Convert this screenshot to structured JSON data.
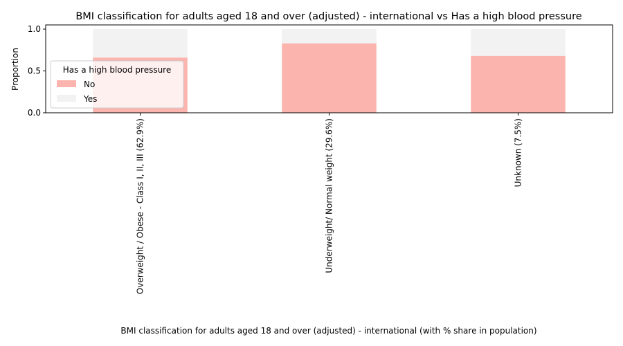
{
  "chart_data": {
    "type": "bar",
    "stacked": true,
    "title": "BMI classification for adults aged 18 and over (adjusted) - international vs Has a high blood pressure",
    "xlabel": "BMI classification for adults aged 18 and over (adjusted) - international (with % share in population)",
    "ylabel": "Proportion",
    "ylim": [
      0,
      1.05
    ],
    "yticks": [
      "0.0",
      "0.5",
      "1.0"
    ],
    "categories": [
      "Overweight / Obese - Class I, II, III (62.9%)",
      "Underweight/ Normal weight (29.6%)",
      "Unknown (7.5%)"
    ],
    "series": [
      {
        "name": "No",
        "values": [
          0.66,
          0.83,
          0.68
        ],
        "color": "#fbb4ae"
      },
      {
        "name": "Yes",
        "values": [
          0.34,
          0.17,
          0.32
        ],
        "color": "#f2f2f2"
      }
    ],
    "legend": {
      "title": "Has a high blood pressure",
      "placement": "center-left"
    },
    "grid": false
  }
}
